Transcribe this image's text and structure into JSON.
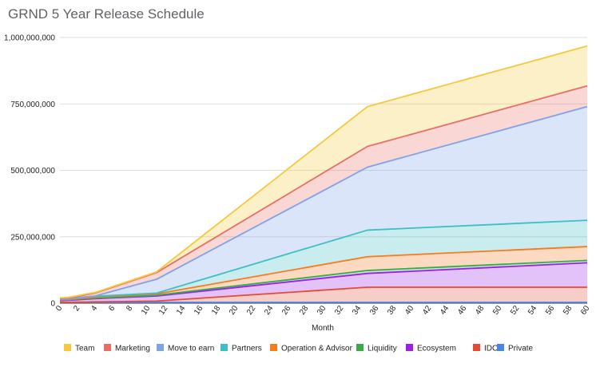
{
  "chart_data": {
    "type": "area",
    "stacked": true,
    "title": "GRND 5 Year Release Schedule",
    "xlabel": "Month",
    "ylabel": "",
    "x": [
      0,
      1,
      2,
      3,
      4,
      11,
      35,
      60
    ],
    "x_ticks": [
      0,
      2,
      4,
      6,
      8,
      10,
      12,
      14,
      16,
      18,
      20,
      22,
      24,
      26,
      28,
      30,
      32,
      34,
      36,
      38,
      40,
      42,
      44,
      46,
      48,
      50,
      52,
      54,
      56,
      58,
      60
    ],
    "y_ticks": [
      0,
      250000000,
      500000000,
      750000000,
      1000000000
    ],
    "y_tick_labels": [
      "0",
      "250,000,000",
      "500,000,000",
      "750,000,000",
      "1,000,000,000"
    ],
    "xlim": [
      0,
      60
    ],
    "ylim": [
      0,
      1000000000
    ],
    "grid": true,
    "legend_position": "bottom",
    "series": [
      {
        "name": "Private",
        "color": "#4a86e8",
        "cumulative": [
          3000000,
          3000000,
          3000000,
          3000000,
          3000000,
          3000000,
          3000000,
          3000000
        ]
      },
      {
        "name": "IDO",
        "color": "#e34a3a",
        "cumulative": [
          3000000,
          3000000,
          4000000,
          4000000,
          5000000,
          8000000,
          60000000,
          60000000
        ]
      },
      {
        "name": "Ecosystem",
        "color": "#9b1fea",
        "cumulative": [
          10000000,
          11000000,
          13000000,
          15000000,
          17000000,
          27000000,
          112000000,
          152000000
        ]
      },
      {
        "name": "Liquidity",
        "color": "#3aaa4a",
        "cumulative": [
          12000000,
          13000000,
          15000000,
          17000000,
          19000000,
          30000000,
          123000000,
          161000000
        ]
      },
      {
        "name": "Operation & Advisor",
        "color": "#f47b20",
        "cumulative": [
          13000000,
          14000000,
          17000000,
          20000000,
          23000000,
          35000000,
          175000000,
          213000000
        ]
      },
      {
        "name": "Partners",
        "color": "#3cbfc4",
        "cumulative": [
          15000000,
          16000000,
          20000000,
          24000000,
          26000000,
          38000000,
          275000000,
          312000000
        ]
      },
      {
        "name": "Move to earn",
        "color": "#7fa2e8",
        "cumulative": [
          15000000,
          16000000,
          20000000,
          24000000,
          27000000,
          90000000,
          512000000,
          740000000
        ]
      },
      {
        "name": "Marketing",
        "color": "#e86f64",
        "cumulative": [
          18000000,
          20000000,
          25000000,
          32000000,
          38000000,
          115000000,
          590000000,
          818000000
        ]
      },
      {
        "name": "Team",
        "color": "#f6c83c",
        "cumulative": [
          20000000,
          22000000,
          28000000,
          35000000,
          40000000,
          118000000,
          740000000,
          968000000
        ]
      }
    ],
    "legend_order": [
      "Team",
      "Marketing",
      "Move to earn",
      "Partners",
      "Operation & Advisor",
      "Liquidity",
      "Ecosystem",
      "IDO",
      "Private"
    ]
  }
}
